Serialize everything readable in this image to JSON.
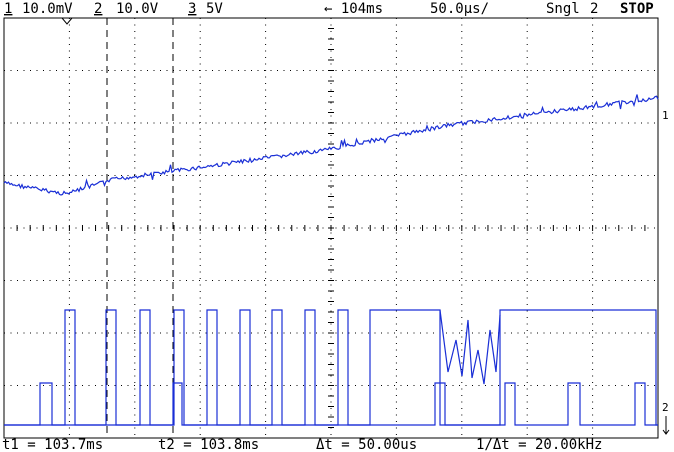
{
  "header": {
    "ch1_number": "1",
    "ch1_scale": "10.0mV",
    "ch2_number": "2",
    "ch2_scale": "10.0V",
    "ch3_number": "3",
    "ch3_scale": "5V",
    "delay": "← 104ms",
    "timebase": "50.0µs/",
    "mode": "Sngl",
    "trigger_channel": "2",
    "status": "STOP"
  },
  "markers": {
    "ch1": "1",
    "ch2": "2"
  },
  "footer": {
    "t1": "t1 = 103.7ms",
    "t2": "t2 = 103.8ms",
    "delta_t": "Δt = 50.00us",
    "inverse_delta_t": "1/Δt = 20.00kHz"
  }
}
